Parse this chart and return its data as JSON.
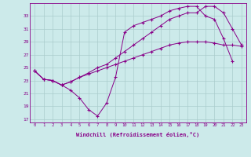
{
  "xlabel": "Windchill (Refroidissement éolien,°C)",
  "background_color": "#cceaea",
  "grid_color": "#aacccc",
  "line_color": "#880088",
  "hours": [
    0,
    1,
    2,
    3,
    4,
    5,
    6,
    7,
    8,
    9,
    10,
    11,
    12,
    13,
    14,
    15,
    16,
    17,
    18,
    19,
    20,
    21,
    22,
    23
  ],
  "line1": [
    24.5,
    23.2,
    23.0,
    22.3,
    21.5,
    20.3,
    18.5,
    17.5,
    19.5,
    23.5,
    30.5,
    31.5,
    32.0,
    32.5,
    33.0,
    33.8,
    34.2,
    34.5,
    34.5,
    33.0,
    32.5,
    29.5,
    26.0,
    null
  ],
  "line2": [
    24.5,
    23.2,
    23.0,
    22.3,
    22.8,
    23.5,
    24.2,
    25.0,
    25.5,
    26.5,
    27.5,
    28.5,
    29.5,
    30.5,
    31.5,
    32.5,
    33.0,
    33.5,
    33.5,
    34.5,
    34.5,
    33.5,
    31.0,
    28.5
  ],
  "line3": [
    24.5,
    23.2,
    23.0,
    22.3,
    22.8,
    23.5,
    24.0,
    24.5,
    25.0,
    25.5,
    26.0,
    26.5,
    27.0,
    27.5,
    28.0,
    28.5,
    28.8,
    29.0,
    29.0,
    29.0,
    28.8,
    28.5,
    28.5,
    28.3
  ],
  "ylim": [
    16.5,
    35.0
  ],
  "yticks": [
    17,
    19,
    21,
    23,
    25,
    27,
    29,
    31,
    33
  ],
  "xlim": [
    -0.5,
    23.5
  ]
}
